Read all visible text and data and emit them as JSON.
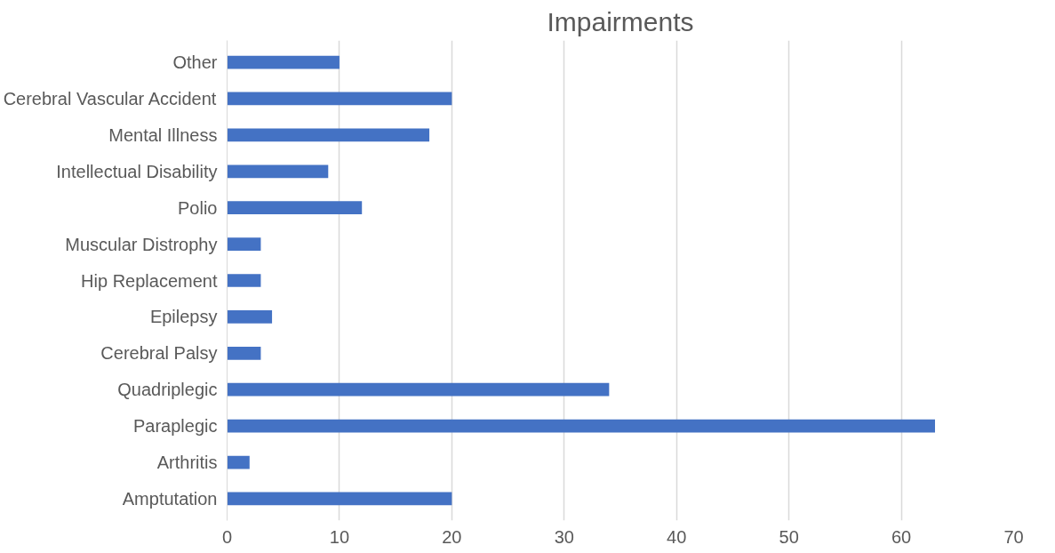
{
  "chart_data": {
    "type": "bar",
    "orientation": "horizontal",
    "title": "Impairments",
    "categories": [
      "Other",
      "Cerebral Vascular Accident",
      "Mental Illness",
      "Intellectual Disability",
      "Polio",
      "Muscular Distrophy",
      "Hip Replacement",
      "Epilepsy",
      "Cerebral Palsy",
      "Quadriplegic",
      "Paraplegic",
      "Arthritis",
      "Amptutation"
    ],
    "values": [
      10,
      20,
      18,
      9,
      12,
      3,
      3,
      4,
      3,
      34,
      63,
      2,
      20
    ],
    "color": "#4472c4",
    "xlim": [
      0,
      70
    ],
    "xticks": [
      0,
      10,
      20,
      30,
      40,
      50,
      60,
      70
    ],
    "grid": "x"
  }
}
